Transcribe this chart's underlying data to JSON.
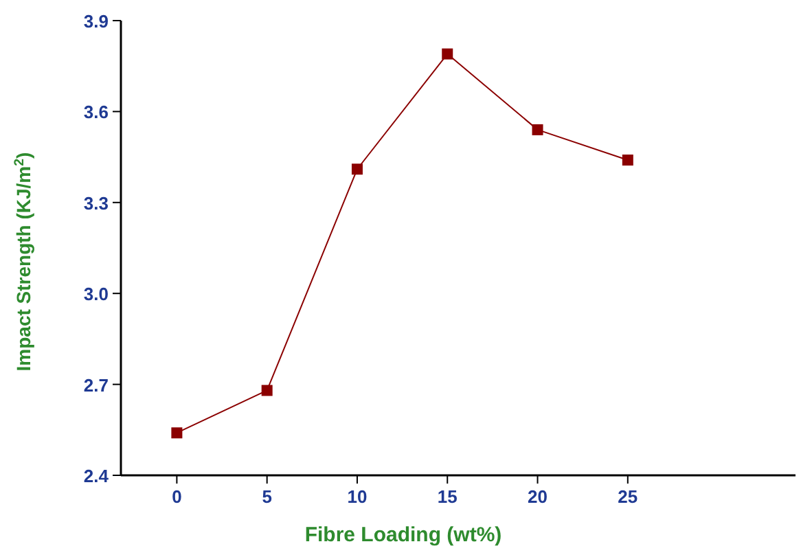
{
  "chart_data": {
    "type": "line",
    "xlabel": "Fibre Loading (wt%)",
    "ylabel": "Impact Strength (KJ/m$^{2}$)",
    "x": [
      0,
      5,
      10,
      15,
      20,
      25
    ],
    "series": [
      {
        "color": "#8b0000",
        "values": [
          2.54,
          2.68,
          3.41,
          3.79,
          3.54,
          3.44
        ]
      }
    ],
    "xlim": [
      -3.1,
      34.3
    ],
    "xticks": [
      0,
      5,
      10,
      15,
      20,
      25
    ],
    "ylim": [
      2.4,
      3.9
    ],
    "yticks": [
      2.4,
      2.7,
      {
        "value": 3,
        "label": "3.0"
      },
      3.3,
      3.6,
      3.9
    ],
    "marker": "square",
    "line_style": "solid",
    "grid": false
  }
}
